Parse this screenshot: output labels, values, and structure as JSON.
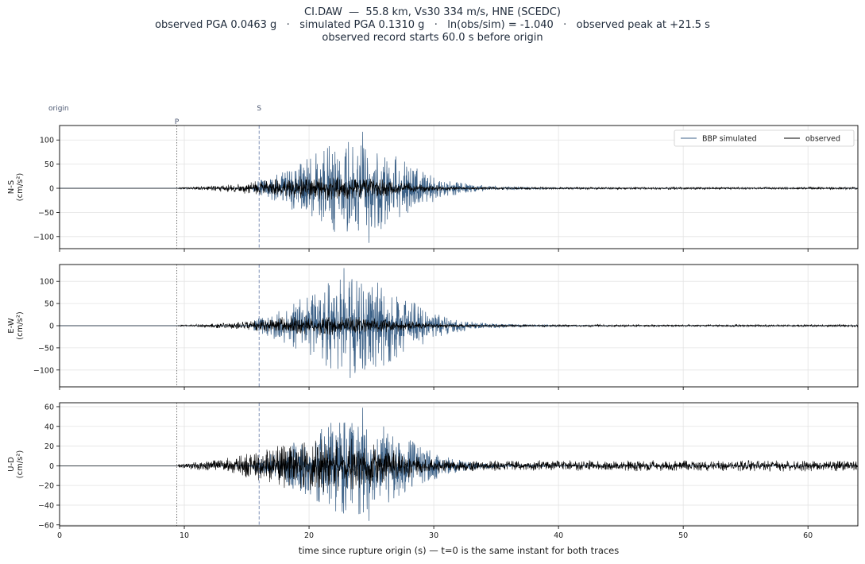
{
  "title_lines": [
    "CI.DAW  —  55.8 km, Vs30 334 m/s, HNE (SCEDC)",
    "observed PGA 0.0463 g   ·   simulated PGA 0.1310 g   ·   ln(obs/sim) = -1.040   ·   observed peak at +21.5 s",
    "observed record starts 60.0 s before origin"
  ],
  "colors": {
    "simulated": "#3d6288",
    "observed": "#000000",
    "grid": "#e3e3e3",
    "p_marker": "#666666",
    "s_marker": "#7f8fb5"
  },
  "chart_data": {
    "type": "line",
    "xlabel": "time since rupture origin (s)   —   t=0 is the same instant for both traces",
    "xlim": [
      0,
      64
    ],
    "x_ticks": [
      0,
      10,
      20,
      30,
      40,
      50,
      60
    ],
    "grid": true,
    "legend": {
      "placement": "top-right",
      "entries": [
        "BBP simulated",
        "observed"
      ]
    },
    "markers": [
      {
        "label": "origin",
        "time": 0
      },
      {
        "label": "P",
        "time": 9.4
      },
      {
        "label": "S",
        "time": 16.0
      }
    ],
    "panels": [
      {
        "component": "N-S",
        "ylabel": "N-S\n(cm/s²)",
        "ylim": [
          -125,
          130
        ],
        "y_ticks": [
          -100,
          -50,
          0,
          50,
          100
        ],
        "simulated": {
          "start": 9.5,
          "peak_time": 24.3,
          "peak": 117,
          "min": -113,
          "spread": 5.0
        },
        "observed": {
          "start": 9.5,
          "peak": 28,
          "envelope_time": 21.5,
          "tail_level": 3
        }
      },
      {
        "component": "E-W",
        "ylabel": "E-W\n(cm/s²)",
        "ylim": [
          -138,
          138
        ],
        "y_ticks": [
          -100,
          -50,
          0,
          50,
          100
        ],
        "simulated": {
          "start": 9.5,
          "peak_time": 22.8,
          "peak": 130,
          "min": -118,
          "spread": 5.0
        },
        "observed": {
          "start": 9.5,
          "peak": 25,
          "envelope_time": 21.5,
          "tail_level": 3
        }
      },
      {
        "component": "U-D",
        "ylabel": "U-D\n(cm/s²)",
        "ylim": [
          -61,
          64
        ],
        "y_ticks": [
          -60,
          -40,
          -20,
          0,
          20,
          40,
          60
        ],
        "simulated": {
          "start": 9.5,
          "peak_time": 24.3,
          "peak": 59,
          "min": -56,
          "spread": 4.5
        },
        "observed": {
          "start": 9.5,
          "peak": 30,
          "envelope_time": 21.5,
          "tail_level": 6
        }
      }
    ]
  }
}
